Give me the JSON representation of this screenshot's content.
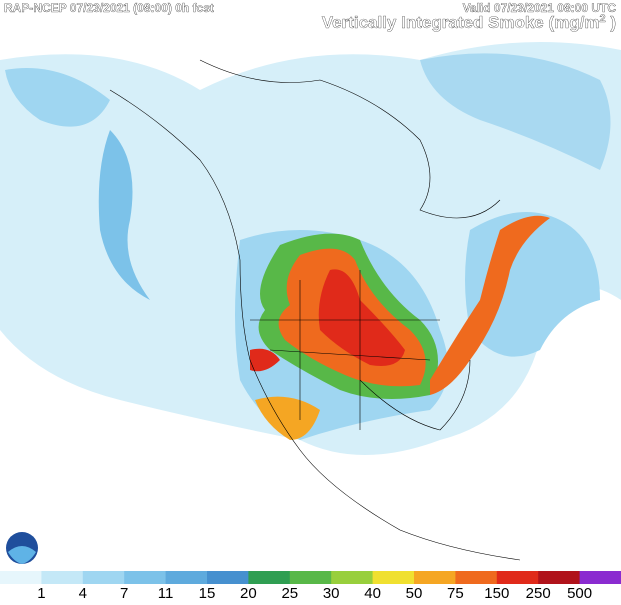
{
  "header": {
    "left": "RAP-NCEP 07/23/2021 (08:00) 0h fcst",
    "right": "Valid 07/23/2021 08:00 UTC",
    "title": "Vertically Integrated Smoke (mg/m",
    "title_superscript": "2",
    "title_end": " )"
  },
  "legend": {
    "levels": [
      1,
      4,
      7,
      11,
      15,
      20,
      25,
      30,
      40,
      50,
      75,
      150,
      250,
      500
    ],
    "colors": [
      "#e6f6fc",
      "#c4e8f7",
      "#9fd6f1",
      "#7cc2e9",
      "#5eaadd",
      "#4690cf",
      "#2f9e52",
      "#58b848",
      "#98cf3c",
      "#f0e030",
      "#f5a623",
      "#ef6a1e",
      "#e02a1a",
      "#b0121a",
      "#8a2bd0"
    ]
  }
}
